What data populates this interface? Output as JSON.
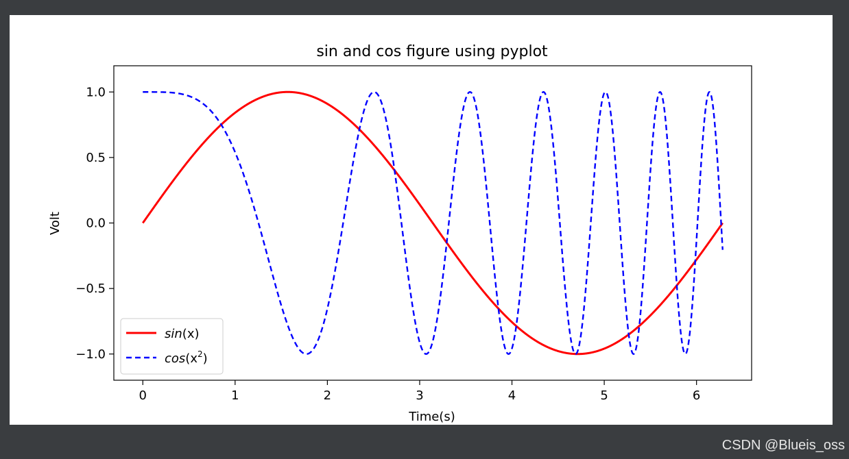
{
  "watermark": "CSDN @Blueis_oss",
  "chart_data": {
    "type": "line",
    "title": "sin and cos figure using  pyplot",
    "xlabel": "Time(s)",
    "ylabel": "Volt",
    "xlim": [
      -0.314,
      6.597
    ],
    "ylim": [
      -1.2,
      1.2
    ],
    "xticks": [
      0,
      1,
      2,
      3,
      4,
      5,
      6
    ],
    "xtick_labels": [
      "0",
      "1",
      "2",
      "3",
      "4",
      "5",
      "6"
    ],
    "yticks": [
      -1.0,
      -0.5,
      0.0,
      0.5,
      1.0
    ],
    "ytick_labels": [
      "−1.0",
      "−0.5",
      "0.0",
      "0.5",
      "1.0"
    ],
    "grid": false,
    "legend_position": "lower left",
    "series": [
      {
        "name": "sin(x)",
        "function": "sin(x)",
        "x_range": [
          0,
          6.283
        ],
        "color": "#ff0000",
        "linestyle": "solid",
        "legend_main": "sin",
        "legend_arg": "(x)",
        "legend_sup": ""
      },
      {
        "name": "cos(x^2)",
        "function": "cos(x^2)",
        "x_range": [
          0,
          6.283
        ],
        "color": "#0000ff",
        "linestyle": "dashed",
        "legend_main": "cos",
        "legend_arg": "(x",
        "legend_sup": "2",
        "legend_close": ")"
      }
    ]
  }
}
